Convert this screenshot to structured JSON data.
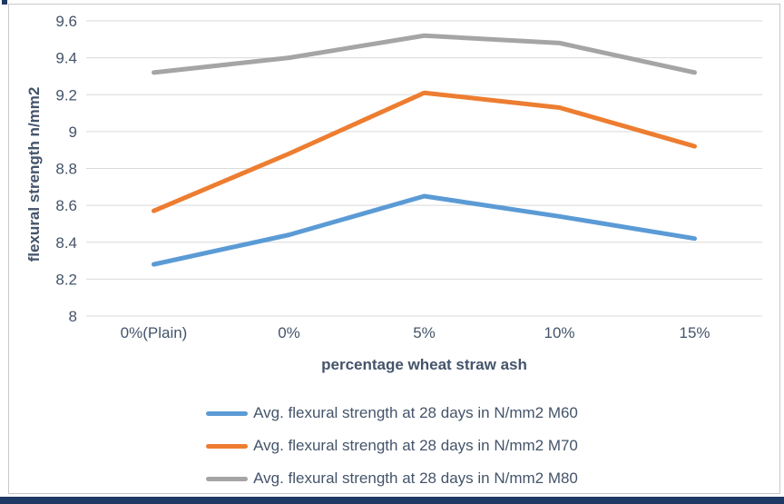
{
  "chart_data": {
    "type": "line",
    "title": "",
    "xlabel": "percentage wheat straw ash",
    "ylabel": "flexural strength n/mm2",
    "categories": [
      "0%(Plain)",
      "0%",
      "5%",
      "10%",
      "15%"
    ],
    "series": [
      {
        "name": "Avg. flexural strength at 28 days in N/mm2 M60",
        "color": "#5B9BD5",
        "values": [
          8.28,
          8.44,
          8.65,
          8.54,
          8.42
        ]
      },
      {
        "name": "Avg. flexural strength at 28 days in N/mm2 M70",
        "color": "#ED7D31",
        "values": [
          8.57,
          8.88,
          9.21,
          9.13,
          8.92
        ]
      },
      {
        "name": "Avg. flexural strength at 28 days in N/mm2 M80",
        "color": "#A5A5A5",
        "values": [
          9.32,
          9.4,
          9.52,
          9.48,
          9.32
        ]
      }
    ],
    "ylim": [
      8.0,
      9.6
    ],
    "ytick_step": 0.2,
    "ytick_labels": [
      "8",
      "8.2",
      "8.4",
      "8.6",
      "8.8",
      "9",
      "9.2",
      "9.4",
      "9.6"
    ],
    "grid": true,
    "legend_position": "bottom"
  },
  "colors": {
    "background": "#FFFFFF",
    "frame_border": "#C8C8C8",
    "grid_line": "#D9D9D9",
    "tick_text": "#44546A",
    "axis_title_text": "#44546A",
    "legend_text": "#44546A",
    "accent_bar": "#1F3864",
    "corner_mark": "#1F3864"
  }
}
